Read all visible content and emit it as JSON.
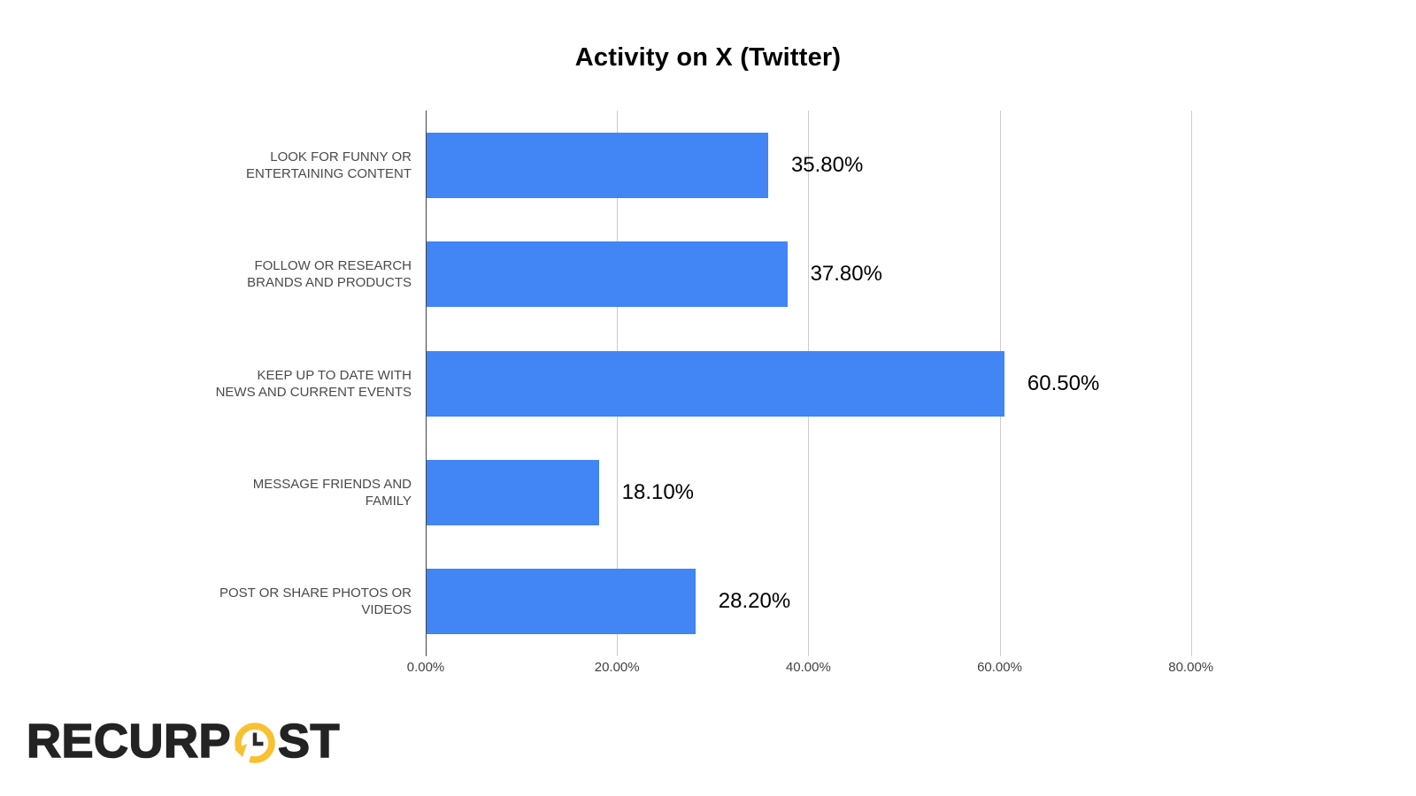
{
  "title": "Activity on X (Twitter)",
  "chart_data": {
    "type": "bar",
    "orientation": "horizontal",
    "title": "Activity on X (Twitter)",
    "categories": [
      "LOOK FOR FUNNY OR ENTERTAINING CONTENT",
      "FOLLOW OR RESEARCH BRANDS AND PRODUCTS",
      "KEEP UP TO DATE WITH NEWS AND CURRENT EVENTS",
      "MESSAGE FRIENDS AND FAMILY",
      "POST OR SHARE PHOTOS OR VIDEOS"
    ],
    "values": [
      35.8,
      37.8,
      60.5,
      18.1,
      28.2
    ],
    "value_labels": [
      "35.80%",
      "37.80%",
      "60.50%",
      "18.10%",
      "28.20%"
    ],
    "x_tick_values": [
      0,
      20,
      40,
      60,
      80
    ],
    "x_tick_labels": [
      "0.00%",
      "20.00%",
      "40.00%",
      "60.00%",
      "80.00%"
    ],
    "xlim": [
      0,
      87.8
    ],
    "grid": "vertical-only",
    "legend": "none",
    "bar_color": "#4285F4"
  },
  "colors": {
    "background": "#ffffff",
    "bar": "#4285F4",
    "gridline": "#cccccc",
    "axis_line": "#424242",
    "title_text": "#000000",
    "category_label": "#4a4a4a",
    "tick_label": "#424242",
    "value_label": "#000000",
    "logo_text": "#232323",
    "logo_accent": "#F9C12F",
    "logo_hands": "#2b2b2b"
  },
  "logo": {
    "name": "RecurPost",
    "text_before_icon": "RECURP",
    "text_after_icon": "ST",
    "icon": "clock-history-icon"
  }
}
